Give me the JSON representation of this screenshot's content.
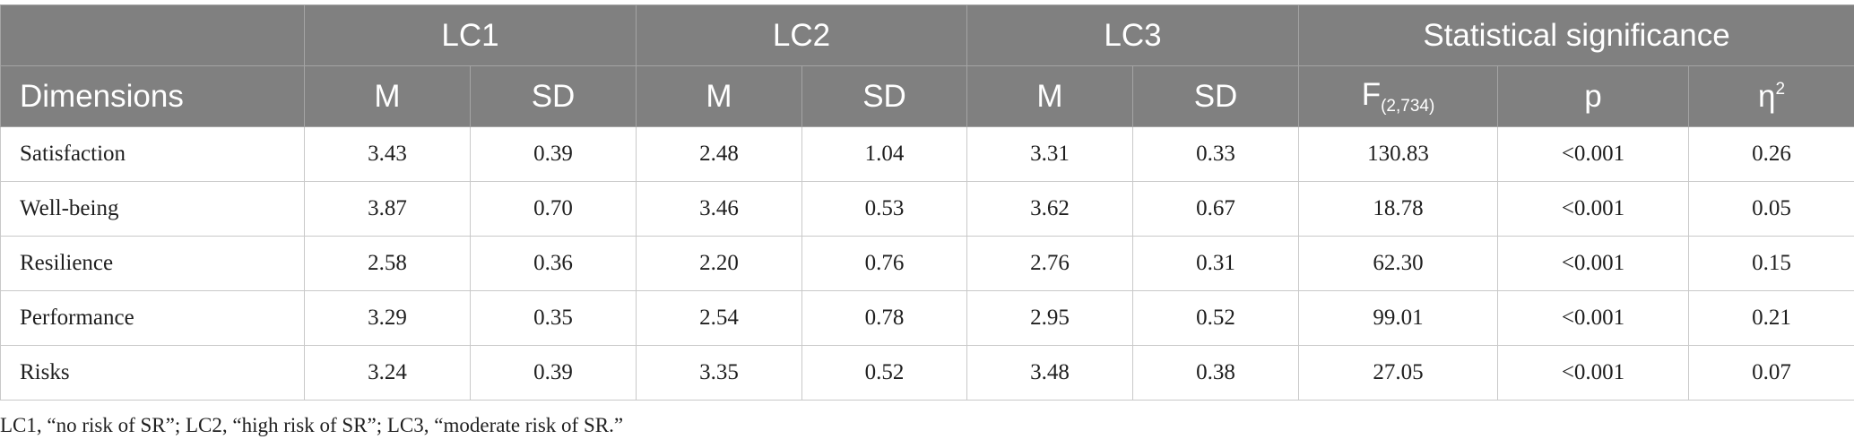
{
  "table": {
    "groups": {
      "lc1": "LC1",
      "lc2": "LC2",
      "lc3": "LC3",
      "stat": "Statistical significance"
    },
    "columns": {
      "dimensions": "Dimensions",
      "m": "M",
      "sd": "SD",
      "f": "F",
      "f_sub": "(2,734)",
      "p": "p",
      "eta": "η",
      "eta_sup": "2"
    },
    "rows": [
      {
        "label": "Satisfaction",
        "lc1_m": "3.43",
        "lc1_sd": "0.39",
        "lc2_m": "2.48",
        "lc2_sd": "1.04",
        "lc3_m": "3.31",
        "lc3_sd": "0.33",
        "f": "130.83",
        "p": "<0.001",
        "eta": "0.26"
      },
      {
        "label": "Well-being",
        "lc1_m": "3.87",
        "lc1_sd": "0.70",
        "lc2_m": "3.46",
        "lc2_sd": "0.53",
        "lc3_m": "3.62",
        "lc3_sd": "0.67",
        "f": "18.78",
        "p": "<0.001",
        "eta": "0.05"
      },
      {
        "label": "Resilience",
        "lc1_m": "2.58",
        "lc1_sd": "0.36",
        "lc2_m": "2.20",
        "lc2_sd": "0.76",
        "lc3_m": "2.76",
        "lc3_sd": "0.31",
        "f": "62.30",
        "p": "<0.001",
        "eta": "0.15"
      },
      {
        "label": "Performance",
        "lc1_m": "3.29",
        "lc1_sd": "0.35",
        "lc2_m": "2.54",
        "lc2_sd": "0.78",
        "lc3_m": "2.95",
        "lc3_sd": "0.52",
        "f": "99.01",
        "p": "<0.001",
        "eta": "0.21"
      },
      {
        "label": "Risks",
        "lc1_m": "3.24",
        "lc1_sd": "0.39",
        "lc2_m": "3.35",
        "lc2_sd": "0.52",
        "lc3_m": "3.48",
        "lc3_sd": "0.38",
        "f": "27.05",
        "p": "<0.001",
        "eta": "0.07"
      }
    ],
    "footnote": "LC1, “no risk of SR”; LC2, “high risk of SR”; LC3, “moderate risk of SR.”"
  },
  "colors": {
    "header_bg": "#808080",
    "header_text": "#ffffff",
    "grid": "#c9c9c9"
  }
}
